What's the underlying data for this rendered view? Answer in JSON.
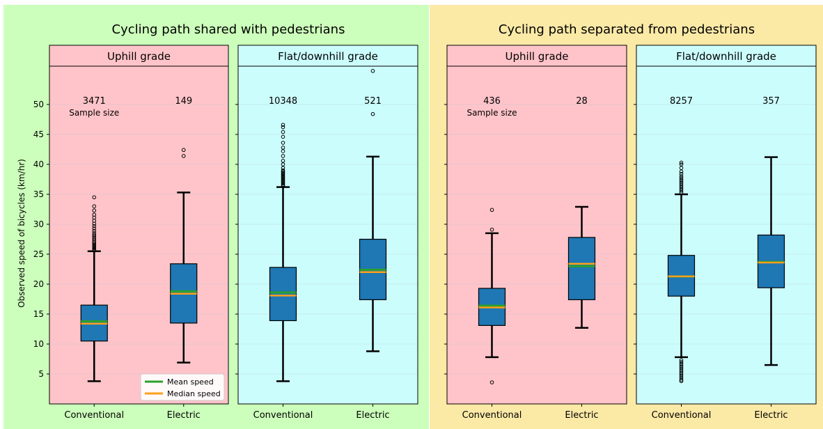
{
  "figure": {
    "ylabel": "Observed speed of bicycles (km/hr)",
    "sample_size_label": "Sample size",
    "legend": {
      "mean_label": "Mean speed",
      "median_label": "Median speed"
    },
    "colors": {
      "shared_bg": "#ccffbb",
      "separated_bg": "#fbe9a6",
      "uphill_panel": "#ffc4c9",
      "flat_panel": "#ccfdfd",
      "box_fill": "#1f77b4",
      "mean_line": "#2ca02c",
      "median_line": "#ff9f1a"
    }
  },
  "chart_data": [
    {
      "type": "box",
      "group": "Cycling path shared with pedestrians",
      "title": "Uphill grade",
      "categories": [
        "Conventional",
        "Electric"
      ],
      "ylim": [
        0,
        57
      ],
      "yticks": [
        5,
        10,
        15,
        20,
        25,
        30,
        35,
        40,
        45,
        50
      ],
      "boxes": [
        {
          "category": "Conventional",
          "sample_size": "3471",
          "whisker_low": 3.8,
          "q1": 10.5,
          "median": 13.4,
          "mean": 13.8,
          "q3": 16.5,
          "whisker_high": 25.5,
          "outliers": [
            25.6,
            25.8,
            26.0,
            26.2,
            26.4,
            26.6,
            26.8,
            27.0,
            27.3,
            27.6,
            27.9,
            28.2,
            28.5,
            28.9,
            29.3,
            29.7,
            30.1,
            30.6,
            31.1,
            31.6,
            32.3,
            33.0,
            34.5
          ]
        },
        {
          "category": "Electric",
          "sample_size": "149",
          "whisker_low": 6.9,
          "q1": 13.5,
          "median": 18.4,
          "mean": 18.8,
          "q3": 23.4,
          "whisker_high": 35.3,
          "outliers": [
            41.4,
            42.4
          ]
        }
      ]
    },
    {
      "type": "box",
      "group": "Cycling path shared with pedestrians",
      "title": "Flat/downhill grade",
      "categories": [
        "Conventional",
        "Electric"
      ],
      "ylim": [
        0,
        57
      ],
      "yticks": [
        5,
        10,
        15,
        20,
        25,
        30,
        35,
        40,
        45,
        50
      ],
      "boxes": [
        {
          "category": "Conventional",
          "sample_size": "10348",
          "whisker_low": 3.8,
          "q1": 13.9,
          "median": 18.1,
          "mean": 18.6,
          "q3": 22.8,
          "whisker_high": 36.2,
          "outliers": [
            36.4,
            36.6,
            36.8,
            37.0,
            37.2,
            37.4,
            37.6,
            37.8,
            38.0,
            38.2,
            38.4,
            38.6,
            38.8,
            39.0,
            39.4,
            40.0,
            40.6,
            41.4,
            42.2,
            42.8,
            43.6,
            44.6,
            45.4,
            46.2,
            46.6
          ]
        },
        {
          "category": "Electric",
          "sample_size": "521",
          "whisker_low": 8.8,
          "q1": 17.4,
          "median": 22.0,
          "mean": 22.4,
          "q3": 27.5,
          "whisker_high": 41.3,
          "outliers": [
            48.4,
            55.6
          ]
        }
      ]
    },
    {
      "type": "box",
      "group": "Cycling path separated from pedestrians",
      "title": "Uphill grade",
      "categories": [
        "Conventional",
        "Electric"
      ],
      "ylim": [
        0,
        57
      ],
      "yticks": [
        5,
        10,
        15,
        20,
        25,
        30,
        35,
        40,
        45,
        50
      ],
      "boxes": [
        {
          "category": "Conventional",
          "sample_size": "436",
          "whisker_low": 7.8,
          "q1": 13.1,
          "median": 16.1,
          "mean": 16.4,
          "q3": 19.3,
          "whisker_high": 28.5,
          "outliers": [
            3.6,
            29.1,
            32.4
          ]
        },
        {
          "category": "Electric",
          "sample_size": "28",
          "whisker_low": 12.7,
          "q1": 17.4,
          "median": 23.4,
          "mean": 23.0,
          "q3": 27.8,
          "whisker_high": 32.9,
          "outliers": []
        }
      ]
    },
    {
      "type": "box",
      "group": "Cycling path separated from pedestrians",
      "title": "Flat/downhill grade",
      "categories": [
        "Conventional",
        "Electric"
      ],
      "ylim": [
        0,
        57
      ],
      "yticks": [
        5,
        10,
        15,
        20,
        25,
        30,
        35,
        40,
        45,
        50
      ],
      "boxes": [
        {
          "category": "Conventional",
          "sample_size": "8257",
          "whisker_low": 7.8,
          "q1": 18.0,
          "median": 21.3,
          "mean": 21.3,
          "q3": 24.8,
          "whisker_high": 35.0,
          "outliers": [
            3.8,
            4.0,
            4.3,
            4.6,
            4.9,
            5.2,
            5.5,
            5.8,
            6.1,
            6.4,
            6.7,
            7.0,
            7.3,
            35.3,
            35.6,
            35.9,
            36.2,
            36.5,
            36.8,
            37.1,
            37.4,
            37.7,
            38.0,
            38.4,
            38.8,
            39.4,
            40.0,
            40.3
          ]
        },
        {
          "category": "Electric",
          "sample_size": "357",
          "whisker_low": 6.5,
          "q1": 19.4,
          "median": 23.6,
          "mean": 23.7,
          "q3": 28.2,
          "whisker_high": 41.2,
          "outliers": []
        }
      ]
    }
  ]
}
